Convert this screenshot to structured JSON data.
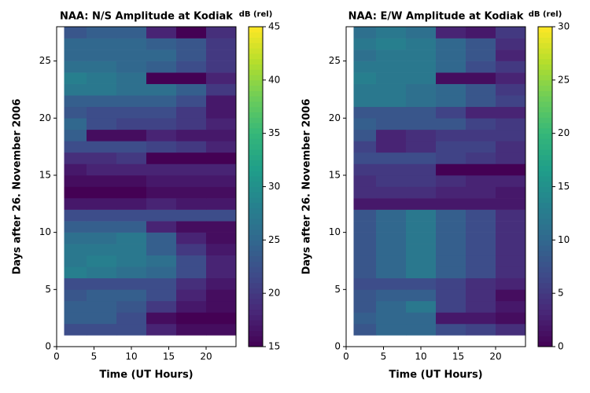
{
  "chart_data": [
    {
      "type": "heatmap",
      "title": "NAA: N/S Amplitude at Kodiak",
      "xlabel": "Time (UT Hours)",
      "ylabel": "Days after 26. November 2006",
      "colorbar_label": "dB (rel)",
      "colormap": "viridis",
      "x_edges": [
        1,
        4,
        8,
        12,
        16,
        20,
        24
      ],
      "y_edges": [
        1,
        2,
        3,
        4,
        5,
        6,
        7,
        8,
        9,
        10,
        11,
        12,
        13,
        14,
        15,
        16,
        17,
        18,
        19,
        20,
        21,
        22,
        23,
        24,
        25,
        26,
        27,
        28
      ],
      "values": [
        [
          22,
          22,
          22,
          18,
          16,
          16
        ],
        [
          24,
          24,
          22,
          16,
          15,
          15
        ],
        [
          24,
          24,
          23,
          20,
          17,
          16
        ],
        [
          23,
          24,
          24,
          22,
          18,
          16
        ],
        [
          22,
          22,
          22,
          22,
          19,
          17
        ],
        [
          28,
          27,
          26,
          25,
          22,
          18
        ],
        [
          27,
          28,
          27,
          26,
          22,
          18
        ],
        [
          27,
          27,
          27,
          24,
          20,
          17
        ],
        [
          26,
          26,
          27,
          24,
          18,
          16
        ],
        [
          24,
          24,
          24,
          18,
          16,
          16
        ],
        [
          22,
          22,
          22,
          22,
          22,
          22
        ],
        [
          17,
          17,
          17,
          18,
          17,
          17
        ],
        [
          15,
          15,
          15,
          16,
          16,
          16
        ],
        [
          16,
          16,
          16,
          17,
          17,
          17
        ],
        [
          17,
          18,
          18,
          18,
          18,
          18
        ],
        [
          19,
          19,
          20,
          15,
          15,
          15
        ],
        [
          22,
          22,
          22,
          21,
          20,
          18
        ],
        [
          24,
          16,
          16,
          18,
          17,
          17
        ],
        [
          25,
          22,
          21,
          21,
          20,
          18
        ],
        [
          23,
          22,
          22,
          22,
          20,
          17
        ],
        [
          24,
          24,
          24,
          24,
          22,
          17
        ],
        [
          27,
          27,
          26,
          26,
          24,
          20
        ],
        [
          28,
          27,
          26,
          15,
          15,
          18
        ],
        [
          26,
          26,
          25,
          24,
          22,
          20
        ],
        [
          25,
          25,
          25,
          25,
          23,
          20
        ],
        [
          25,
          25,
          25,
          24,
          23,
          20
        ],
        [
          23,
          24,
          24,
          18,
          15,
          19
        ]
      ],
      "xlim": [
        0,
        24
      ],
      "ylim": [
        0,
        28
      ],
      "xticks": [
        0,
        5,
        10,
        15,
        20
      ],
      "yticks": [
        0,
        5,
        10,
        15,
        20,
        25
      ],
      "clim": [
        15,
        45
      ],
      "cticks": [
        15,
        20,
        25,
        30,
        35,
        40,
        45
      ]
    },
    {
      "type": "heatmap",
      "title": "NAA: E/W Amplitude at Kodiak",
      "xlabel": "Time (UT Hours)",
      "ylabel": "Days after 26. November 2006",
      "colorbar_label": "dB (rel)",
      "colormap": "viridis",
      "x_edges": [
        1,
        4,
        8,
        12,
        16,
        20,
        24
      ],
      "y_edges": [
        1,
        2,
        3,
        4,
        5,
        6,
        7,
        8,
        9,
        10,
        11,
        12,
        13,
        14,
        15,
        16,
        17,
        18,
        19,
        20,
        21,
        22,
        23,
        24,
        25,
        26,
        27,
        28
      ],
      "values": [
        [
          8,
          10,
          10,
          7,
          6,
          4
        ],
        [
          9,
          10,
          10,
          2,
          2,
          1
        ],
        [
          8,
          10,
          12,
          6,
          4,
          2
        ],
        [
          8,
          9,
          9,
          6,
          4,
          1
        ],
        [
          7,
          7,
          7,
          6,
          4,
          3
        ],
        [
          8,
          10,
          12,
          9,
          7,
          4
        ],
        [
          8,
          10,
          12,
          9,
          7,
          4
        ],
        [
          8,
          10,
          12,
          9,
          7,
          4
        ],
        [
          8,
          10,
          12,
          9,
          7,
          4
        ],
        [
          8,
          10,
          12,
          9,
          7,
          4
        ],
        [
          8,
          10,
          12,
          9,
          7,
          4
        ],
        [
          2,
          2,
          2,
          2,
          2,
          2
        ],
        [
          4,
          4,
          4,
          3,
          3,
          2
        ],
        [
          4,
          5,
          5,
          4,
          3,
          3
        ],
        [
          5,
          5,
          5,
          0,
          0,
          0
        ],
        [
          7,
          7,
          7,
          6,
          5,
          4
        ],
        [
          6,
          3,
          4,
          6,
          6,
          4
        ],
        [
          8,
          3,
          4,
          5,
          5,
          5
        ],
        [
          9,
          8,
          8,
          8,
          6,
          5
        ],
        [
          8,
          8,
          8,
          6,
          3,
          3
        ],
        [
          12,
          12,
          11,
          10,
          8,
          6
        ],
        [
          12,
          12,
          11,
          10,
          8,
          5
        ],
        [
          13,
          12,
          12,
          1,
          1,
          3
        ],
        [
          12,
          12,
          12,
          10,
          7,
          5
        ],
        [
          11,
          12,
          12,
          10,
          8,
          3
        ],
        [
          12,
          13,
          12,
          10,
          8,
          4
        ],
        [
          11,
          12,
          11,
          3,
          2,
          5
        ]
      ],
      "xlim": [
        0,
        24
      ],
      "ylim": [
        0,
        28
      ],
      "xticks": [
        0,
        5,
        10,
        15,
        20
      ],
      "yticks": [
        0,
        5,
        10,
        15,
        20,
        25
      ],
      "clim": [
        0,
        30
      ],
      "cticks": [
        0,
        5,
        10,
        15,
        20,
        25,
        30
      ]
    }
  ]
}
